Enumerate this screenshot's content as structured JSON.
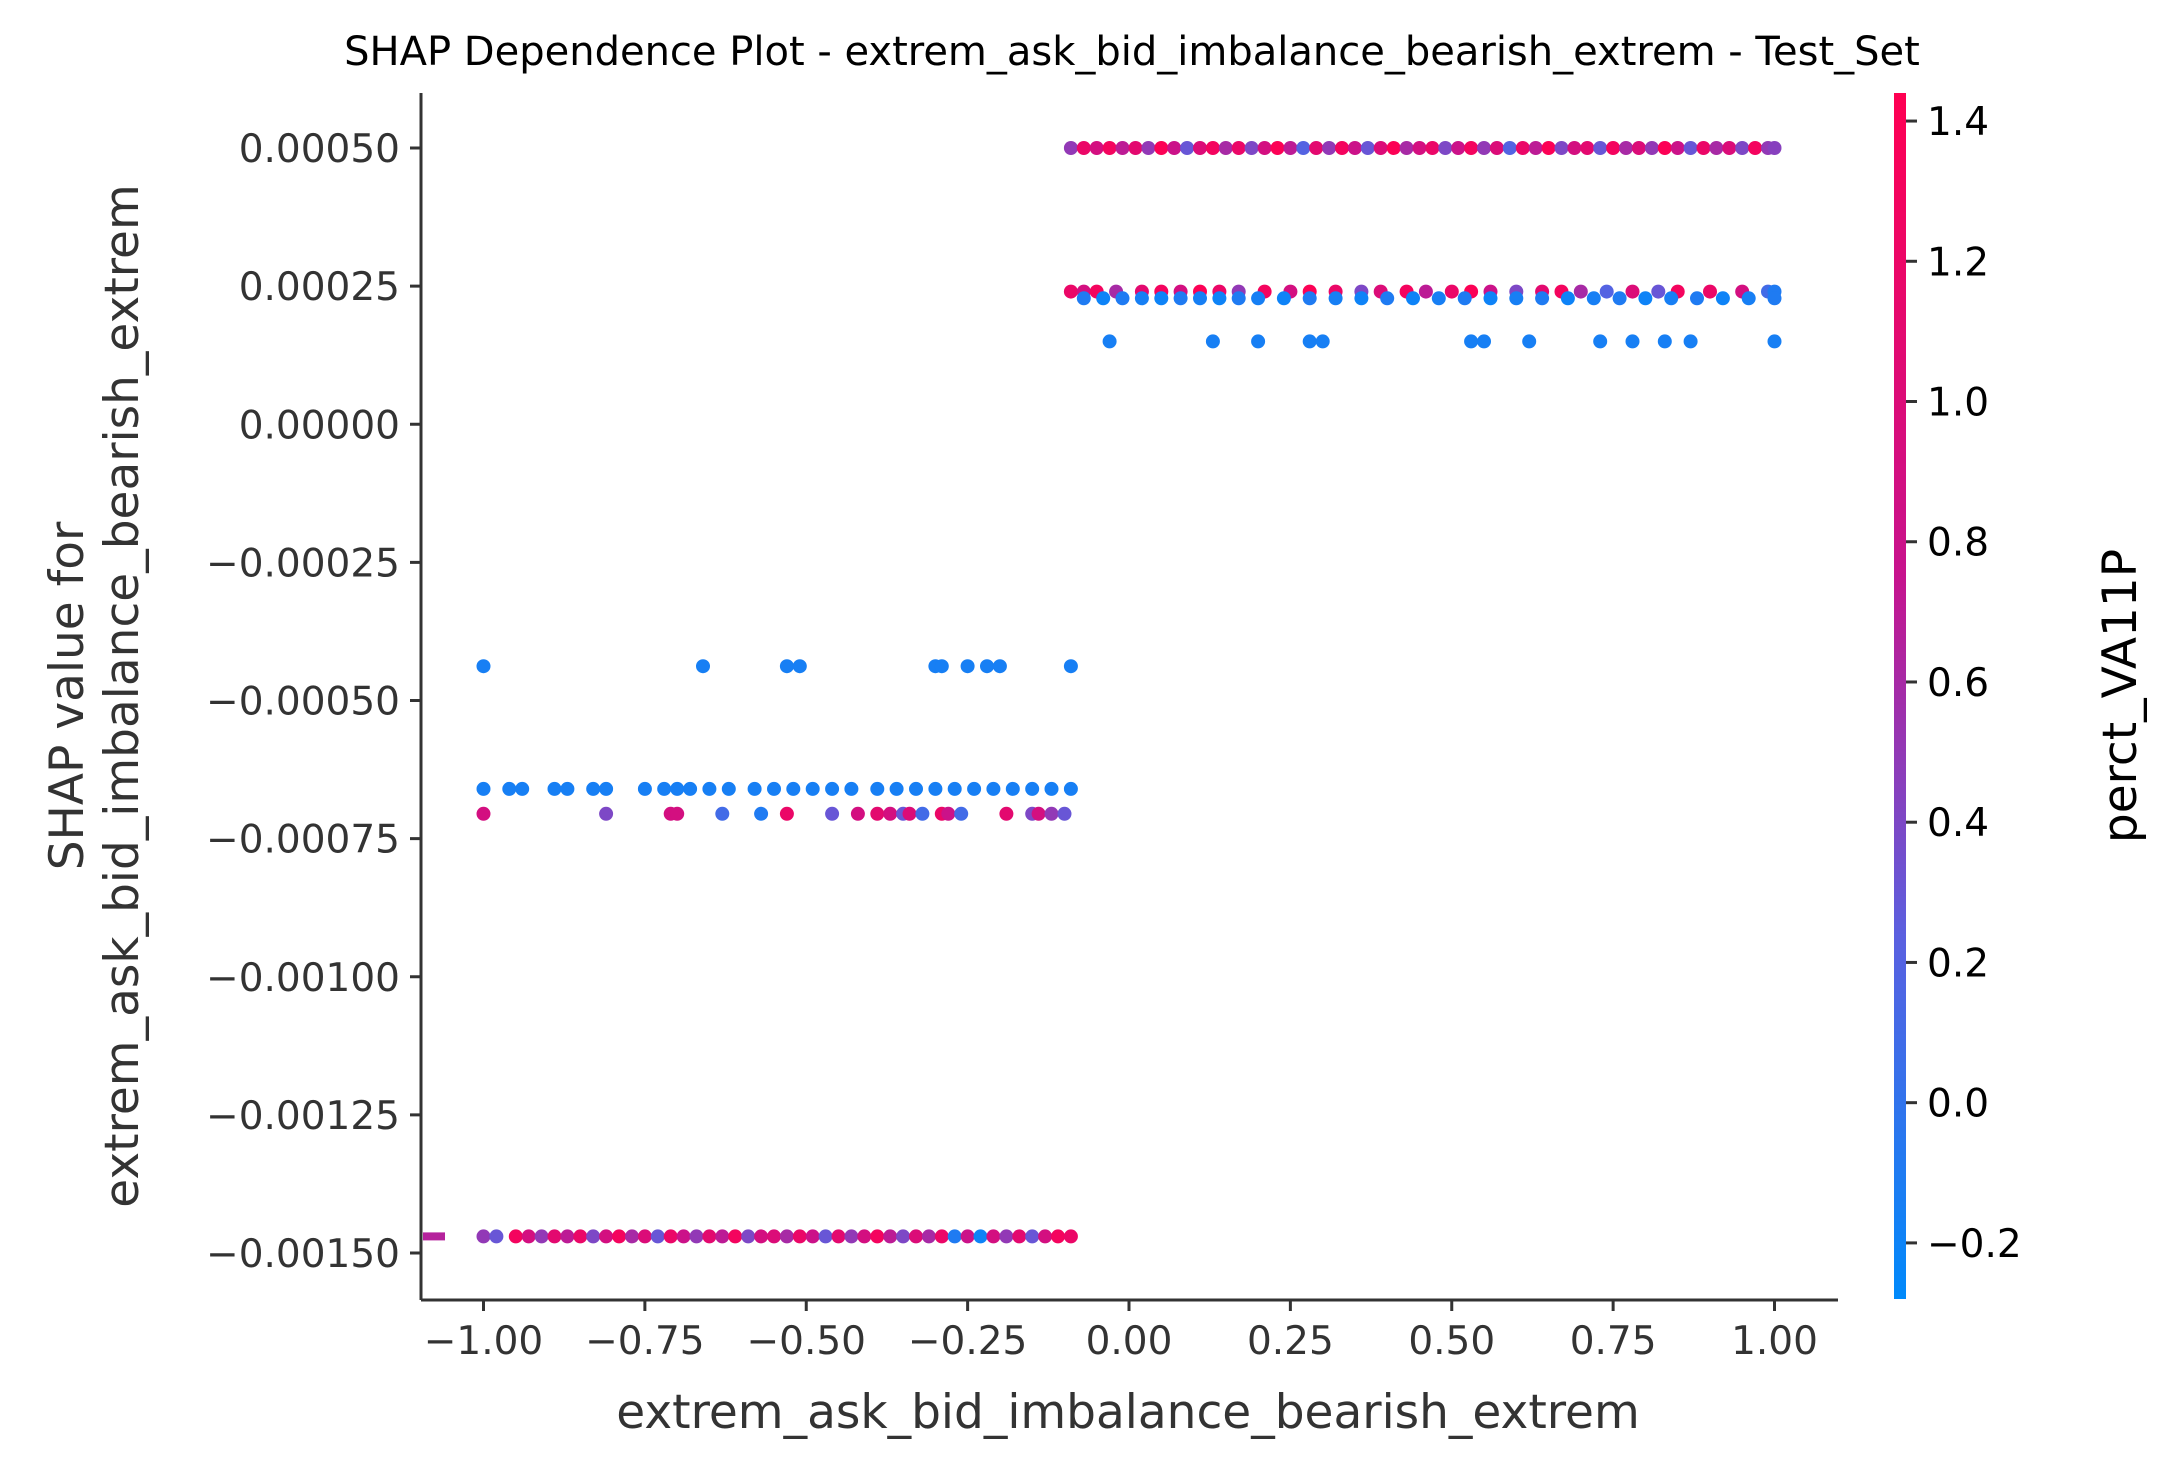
{
  "chart_data": {
    "type": "scatter",
    "title": "SHAP Dependence Plot - extrem_ask_bid_imbalance_bearish_extrem - Test_Set",
    "xlabel": "extrem_ask_bid_imbalance_bearish_extrem",
    "ylabel_lines": [
      "SHAP value for",
      "extrem_ask_bid_imbalance_bearish_extrem"
    ],
    "xlim": [
      -1.1,
      1.1
    ],
    "ylim": [
      -0.00157,
      0.0006
    ],
    "x_ticks": [
      -1.0,
      -0.75,
      -0.5,
      -0.25,
      0.0,
      0.25,
      0.5,
      0.75,
      1.0
    ],
    "x_tick_labels": [
      "−1.00",
      "−0.75",
      "−0.50",
      "−0.25",
      "0.00",
      "0.25",
      "0.50",
      "0.75",
      "1.00"
    ],
    "y_ticks": [
      0.0005,
      0.00025,
      0.0,
      -0.00025,
      -0.0005,
      -0.00075,
      -0.001,
      -0.00125,
      -0.0015
    ],
    "y_tick_labels": [
      "0.00050",
      "0.00025",
      "0.00000",
      "−0.00025",
      "−0.00050",
      "−0.00075",
      "−0.00100",
      "−0.00125",
      "−0.00150"
    ],
    "grid": false,
    "colorbar": {
      "label": "perct_VA11P",
      "range": [
        -0.28,
        1.44
      ],
      "ticks": [
        -0.2,
        0.0,
        0.2,
        0.4,
        0.6,
        0.8,
        1.0,
        1.2,
        1.4
      ],
      "tick_labels": [
        "−0.2",
        "0.0",
        "0.2",
        "0.4",
        "0.6",
        "0.8",
        "1.0",
        "1.2",
        "1.4"
      ],
      "low_color": "#008afb",
      "high_color": "#ff0052",
      "mid_color": "#c7138d"
    },
    "series": [
      {
        "y": 0.0005,
        "points": [
          [
            -0.09,
            0.5
          ],
          [
            -0.07,
            1.2
          ],
          [
            -0.05,
            0.9
          ],
          [
            -0.03,
            1.3
          ],
          [
            -0.01,
            0.7
          ],
          [
            0.01,
            1.1
          ],
          [
            0.03,
            0.5
          ],
          [
            0.05,
            1.4
          ],
          [
            0.07,
            0.8
          ],
          [
            0.09,
            0.3
          ],
          [
            0.11,
            1.0
          ],
          [
            0.13,
            1.3
          ],
          [
            0.15,
            0.6
          ],
          [
            0.17,
            1.2
          ],
          [
            0.19,
            0.4
          ],
          [
            0.21,
            0.9
          ],
          [
            0.23,
            1.4
          ],
          [
            0.25,
            0.7
          ],
          [
            0.27,
            0.2
          ],
          [
            0.29,
            1.1
          ],
          [
            0.31,
            0.5
          ],
          [
            0.33,
            1.3
          ],
          [
            0.35,
            0.8
          ],
          [
            0.37,
            0.3
          ],
          [
            0.39,
            1.0
          ],
          [
            0.41,
            1.4
          ],
          [
            0.43,
            0.6
          ],
          [
            0.45,
            0.9
          ],
          [
            0.47,
            1.2
          ],
          [
            0.49,
            0.4
          ],
          [
            0.51,
            0.8
          ],
          [
            0.53,
            1.3
          ],
          [
            0.55,
            0.5
          ],
          [
            0.57,
            1.0
          ],
          [
            0.59,
            0.2
          ],
          [
            0.61,
            1.2
          ],
          [
            0.63,
            0.7
          ],
          [
            0.65,
            1.4
          ],
          [
            0.67,
            0.4
          ],
          [
            0.69,
            0.9
          ],
          [
            0.71,
            1.1
          ],
          [
            0.73,
            0.3
          ],
          [
            0.75,
            1.3
          ],
          [
            0.77,
            0.6
          ],
          [
            0.79,
            1.0
          ],
          [
            0.81,
            0.5
          ],
          [
            0.83,
            1.4
          ],
          [
            0.85,
            0.8
          ],
          [
            0.87,
            0.3
          ],
          [
            0.89,
            1.2
          ],
          [
            0.91,
            0.6
          ],
          [
            0.93,
            1.0
          ],
          [
            0.95,
            0.4
          ],
          [
            0.97,
            1.3
          ],
          [
            0.99,
            0.5
          ],
          [
            1.0,
            0.45
          ]
        ]
      },
      {
        "y": 0.00024,
        "points": [
          [
            -0.09,
            1.2
          ],
          [
            -0.07,
            0.9
          ],
          [
            -0.05,
            1.3
          ],
          [
            -0.02,
            0.6
          ],
          [
            0.02,
            1.1
          ],
          [
            0.05,
            1.3
          ],
          [
            0.08,
            0.9
          ],
          [
            0.11,
            1.4
          ],
          [
            0.14,
            1.2
          ],
          [
            0.17,
            0.5
          ],
          [
            0.21,
            1.3
          ],
          [
            0.25,
            0.9
          ],
          [
            0.28,
            1.4
          ],
          [
            0.32,
            1.2
          ],
          [
            0.36,
            0.4
          ],
          [
            0.39,
            1.0
          ],
          [
            0.43,
            1.3
          ],
          [
            0.46,
            0.7
          ],
          [
            0.5,
            1.2
          ],
          [
            0.53,
            1.4
          ],
          [
            0.56,
            0.8
          ],
          [
            0.6,
            0.4
          ],
          [
            0.64,
            1.1
          ],
          [
            0.67,
            1.3
          ],
          [
            0.7,
            0.6
          ],
          [
            0.74,
            0.2
          ],
          [
            0.78,
            1.0
          ],
          [
            0.82,
            0.3
          ],
          [
            0.85,
            1.3
          ],
          [
            0.9,
            1.2
          ],
          [
            0.95,
            0.9
          ],
          [
            0.99,
            0.1
          ],
          [
            1.0,
            -0.1
          ]
        ]
      },
      {
        "y": 0.000228,
        "points": [
          [
            -0.07,
            -0.1
          ],
          [
            -0.04,
            -0.2
          ],
          [
            -0.01,
            -0.1
          ],
          [
            0.02,
            -0.15
          ],
          [
            0.05,
            -0.2
          ],
          [
            0.08,
            -0.1
          ],
          [
            0.11,
            -0.15
          ],
          [
            0.14,
            -0.2
          ],
          [
            0.17,
            -0.1
          ],
          [
            0.2,
            -0.15
          ],
          [
            0.24,
            -0.2
          ],
          [
            0.28,
            -0.1
          ],
          [
            0.32,
            -0.15
          ],
          [
            0.36,
            -0.2
          ],
          [
            0.4,
            -0.1
          ],
          [
            0.44,
            -0.2
          ],
          [
            0.48,
            -0.15
          ],
          [
            0.52,
            -0.1
          ],
          [
            0.56,
            -0.2
          ],
          [
            0.6,
            -0.15
          ],
          [
            0.64,
            -0.1
          ],
          [
            0.68,
            -0.2
          ],
          [
            0.72,
            -0.15
          ],
          [
            0.76,
            -0.1
          ],
          [
            0.8,
            -0.2
          ],
          [
            0.84,
            -0.15
          ],
          [
            0.88,
            -0.1
          ],
          [
            0.92,
            -0.2
          ],
          [
            0.96,
            -0.15
          ],
          [
            1.0,
            -0.1
          ]
        ]
      },
      {
        "y": 0.00015,
        "points": [
          [
            -0.03,
            -0.15
          ],
          [
            0.13,
            -0.15
          ],
          [
            0.2,
            -0.15
          ],
          [
            0.28,
            -0.15
          ],
          [
            0.3,
            -0.15
          ],
          [
            0.53,
            -0.15
          ],
          [
            0.55,
            -0.15
          ],
          [
            0.62,
            -0.15
          ],
          [
            0.73,
            -0.15
          ],
          [
            0.78,
            -0.15
          ],
          [
            0.83,
            -0.15
          ],
          [
            0.87,
            -0.15
          ],
          [
            1.0,
            -0.15
          ]
        ]
      },
      {
        "y": -0.000438,
        "points": [
          [
            -1.0,
            -0.15
          ],
          [
            -0.66,
            -0.15
          ],
          [
            -0.53,
            -0.15
          ],
          [
            -0.51,
            -0.15
          ],
          [
            -0.3,
            -0.15
          ],
          [
            -0.29,
            -0.15
          ],
          [
            -0.25,
            -0.15
          ],
          [
            -0.22,
            -0.15
          ],
          [
            -0.2,
            -0.15
          ],
          [
            -0.09,
            -0.15
          ]
        ]
      },
      {
        "y": -0.00066,
        "points": [
          [
            -1.0,
            -0.15
          ],
          [
            -0.96,
            -0.15
          ],
          [
            -0.94,
            -0.15
          ],
          [
            -0.89,
            -0.15
          ],
          [
            -0.87,
            -0.15
          ],
          [
            -0.83,
            -0.15
          ],
          [
            -0.81,
            -0.15
          ],
          [
            -0.75,
            -0.15
          ],
          [
            -0.72,
            -0.15
          ],
          [
            -0.7,
            -0.15
          ],
          [
            -0.68,
            -0.15
          ],
          [
            -0.65,
            -0.15
          ],
          [
            -0.62,
            -0.15
          ],
          [
            -0.58,
            -0.15
          ],
          [
            -0.55,
            -0.15
          ],
          [
            -0.52,
            -0.15
          ],
          [
            -0.49,
            -0.15
          ],
          [
            -0.46,
            -0.15
          ],
          [
            -0.43,
            -0.15
          ],
          [
            -0.39,
            -0.15
          ],
          [
            -0.36,
            -0.15
          ],
          [
            -0.33,
            -0.15
          ],
          [
            -0.3,
            -0.15
          ],
          [
            -0.27,
            -0.15
          ],
          [
            -0.24,
            -0.15
          ],
          [
            -0.21,
            -0.15
          ],
          [
            -0.18,
            -0.15
          ],
          [
            -0.15,
            -0.15
          ],
          [
            -0.12,
            -0.15
          ],
          [
            -0.09,
            -0.15
          ]
        ]
      },
      {
        "y": -0.000705,
        "points": [
          [
            -1.0,
            0.9
          ],
          [
            -0.81,
            0.4
          ],
          [
            -0.71,
            0.9
          ],
          [
            -0.7,
            0.9
          ],
          [
            -0.63,
            0.1
          ],
          [
            -0.57,
            -0.1
          ],
          [
            -0.53,
            1.2
          ],
          [
            -0.46,
            0.3
          ],
          [
            -0.42,
            0.9
          ],
          [
            -0.39,
            1.1
          ],
          [
            -0.37,
            0.9
          ],
          [
            -0.35,
            0.3
          ],
          [
            -0.34,
            1.0
          ],
          [
            -0.32,
            0.1
          ],
          [
            -0.29,
            1.2
          ],
          [
            -0.28,
            0.8
          ],
          [
            -0.26,
            0.1
          ],
          [
            -0.19,
            1.1
          ],
          [
            -0.15,
            0.4
          ],
          [
            -0.14,
            0.9
          ],
          [
            -0.12,
            0.5
          ],
          [
            -0.1,
            0.3
          ]
        ]
      },
      {
        "y": -0.00147,
        "points": [
          [
            -1.0,
            0.5
          ],
          [
            -0.98,
            0.3
          ],
          [
            -0.95,
            1.3
          ],
          [
            -0.93,
            0.9
          ],
          [
            -0.91,
            0.5
          ],
          [
            -0.89,
            1.1
          ],
          [
            -0.87,
            0.7
          ],
          [
            -0.85,
            1.2
          ],
          [
            -0.83,
            0.4
          ],
          [
            -0.81,
            0.9
          ],
          [
            -0.79,
            1.3
          ],
          [
            -0.77,
            0.6
          ],
          [
            -0.75,
            1.0
          ],
          [
            -0.73,
            0.3
          ],
          [
            -0.71,
            1.2
          ],
          [
            -0.69,
            0.8
          ],
          [
            -0.67,
            0.5
          ],
          [
            -0.65,
            1.1
          ],
          [
            -0.63,
            0.7
          ],
          [
            -0.61,
            1.3
          ],
          [
            -0.59,
            0.4
          ],
          [
            -0.57,
            0.9
          ],
          [
            -0.55,
            1.0
          ],
          [
            -0.53,
            0.6
          ],
          [
            -0.51,
            1.2
          ],
          [
            -0.49,
            0.8
          ],
          [
            -0.47,
            0.3
          ],
          [
            -0.45,
            1.1
          ],
          [
            -0.43,
            0.5
          ],
          [
            -0.41,
            0.9
          ],
          [
            -0.39,
            1.3
          ],
          [
            -0.37,
            0.7
          ],
          [
            -0.35,
            0.4
          ],
          [
            -0.33,
            1.0
          ],
          [
            -0.31,
            0.6
          ],
          [
            -0.29,
            1.2
          ],
          [
            -0.27,
            -0.1
          ],
          [
            -0.25,
            0.8
          ],
          [
            -0.23,
            -0.2
          ],
          [
            -0.21,
            0.9
          ],
          [
            -0.19,
            0.5
          ],
          [
            -0.17,
            1.1
          ],
          [
            -0.15,
            0.3
          ],
          [
            -0.13,
            0.9
          ],
          [
            -0.11,
            1.3
          ],
          [
            -0.09,
            1.2
          ]
        ]
      }
    ],
    "edge_marker": {
      "y": -0.00147,
      "color": "#b5229c"
    }
  }
}
